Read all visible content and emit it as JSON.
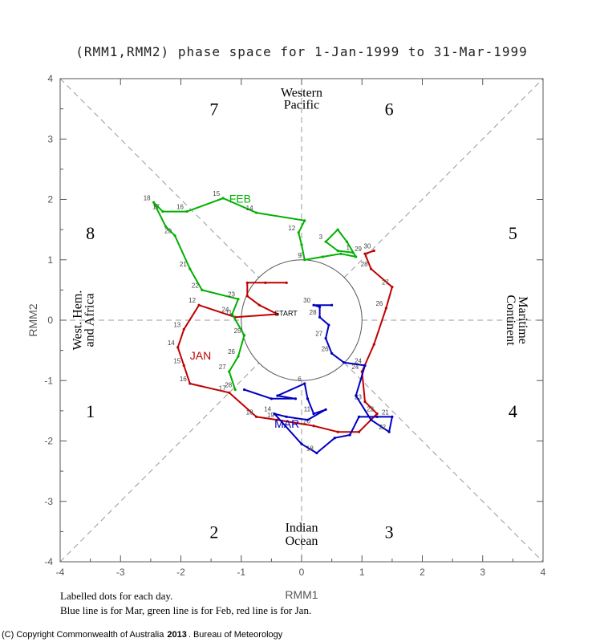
{
  "chart_data": {
    "type": "line",
    "title": "(RMM1,RMM2) phase space for  1-Jan-1999 to 31-Mar-1999",
    "xlabel": "RMM1",
    "ylabel": "RMM2",
    "xlim": [
      -4,
      4
    ],
    "ylim": [
      -4,
      4
    ],
    "x_ticks": [
      "-4",
      "-3",
      "-2",
      "-1",
      "0",
      "1",
      "2",
      "3",
      "4"
    ],
    "y_ticks": [
      "-4",
      "-3",
      "-2",
      "-1",
      "0",
      "1",
      "2",
      "3",
      "4"
    ],
    "phase_numbers": [
      "1",
      "2",
      "3",
      "4",
      "5",
      "6",
      "7",
      "8"
    ],
    "region_labels": {
      "top": [
        "Western",
        "Pacific"
      ],
      "bottom": [
        "Indian",
        "Ocean"
      ],
      "left": [
        "West. Hem.",
        "and Africa"
      ],
      "right": [
        "Maritime",
        "Continent"
      ]
    },
    "start_label": "START",
    "series": [
      {
        "name": "Jan",
        "month_label": "JAN",
        "color": "#c00000",
        "points": [
          [
            -0.25,
            0.62,
            ""
          ],
          [
            -0.6,
            0.62,
            ""
          ],
          [
            -0.9,
            0.62,
            ""
          ],
          [
            -0.9,
            0.4,
            ""
          ],
          [
            -0.7,
            0.25,
            ""
          ],
          [
            -0.4,
            0.1,
            ""
          ],
          [
            -1.1,
            0.05,
            "11"
          ],
          [
            -1.7,
            0.25,
            "12"
          ],
          [
            -1.95,
            -0.15,
            "13"
          ],
          [
            -2.05,
            -0.45,
            "14"
          ],
          [
            -1.95,
            -0.75,
            "15"
          ],
          [
            -1.85,
            -1.05,
            "16"
          ],
          [
            -1.2,
            -1.2,
            "17"
          ],
          [
            -0.75,
            -1.6,
            "18"
          ],
          [
            -0.4,
            -1.65,
            "19"
          ],
          [
            0.2,
            -1.75,
            "20"
          ],
          [
            0.6,
            -1.85,
            ""
          ],
          [
            0.95,
            -1.85,
            ""
          ],
          [
            1.25,
            -1.55,
            "22"
          ],
          [
            1.05,
            -1.35,
            "23"
          ],
          [
            1.0,
            -0.85,
            "24"
          ],
          [
            1.2,
            -0.4,
            ""
          ],
          [
            1.4,
            0.2,
            "26"
          ],
          [
            1.5,
            0.55,
            "27"
          ],
          [
            1.15,
            0.85,
            "28"
          ],
          [
            1.05,
            1.1,
            "29"
          ],
          [
            1.2,
            1.15,
            "30"
          ]
        ]
      },
      {
        "name": "Feb",
        "month_label": "FEB",
        "color": "#00b000",
        "points": [
          [
            0.85,
            1.12,
            "1"
          ],
          [
            0.6,
            1.15,
            ""
          ],
          [
            0.4,
            1.3,
            "3"
          ],
          [
            0.6,
            1.5,
            ""
          ],
          [
            0.75,
            1.3,
            ""
          ],
          [
            0.9,
            1.05,
            ""
          ],
          [
            0.65,
            1.1,
            ""
          ],
          [
            0.35,
            1.05,
            ""
          ],
          [
            0.05,
            1.0,
            "9"
          ],
          [
            0.0,
            1.25,
            ""
          ],
          [
            -0.05,
            1.45,
            "12"
          ],
          [
            0.05,
            1.65,
            ""
          ],
          [
            -0.75,
            1.78,
            "14"
          ],
          [
            -1.3,
            2.02,
            "15"
          ],
          [
            -1.9,
            1.8,
            "16"
          ],
          [
            -2.3,
            1.8,
            "17"
          ],
          [
            -2.45,
            1.95,
            "18"
          ],
          [
            -2.25,
            1.55,
            ""
          ],
          [
            -2.1,
            1.4,
            "20"
          ],
          [
            -1.85,
            0.85,
            "21"
          ],
          [
            -1.65,
            0.5,
            "22"
          ],
          [
            -1.05,
            0.35,
            "23"
          ],
          [
            -1.15,
            0.1,
            "24"
          ],
          [
            -0.95,
            -0.25,
            "25"
          ],
          [
            -1.05,
            -0.6,
            "26"
          ],
          [
            -1.2,
            -0.85,
            "27"
          ],
          [
            -1.1,
            -1.15,
            "28"
          ]
        ]
      },
      {
        "name": "Mar",
        "month_label": "MAR",
        "color": "#0000c0",
        "points": [
          [
            -0.95,
            -1.15,
            ""
          ],
          [
            -0.5,
            -1.3,
            ""
          ],
          [
            -0.1,
            -1.3,
            ""
          ],
          [
            -0.4,
            -1.25,
            ""
          ],
          [
            0.05,
            -1.05,
            "6"
          ],
          [
            0.1,
            -1.3,
            ""
          ],
          [
            0.2,
            -1.55,
            "11"
          ],
          [
            0.4,
            -1.48,
            ""
          ],
          [
            0.1,
            -1.65,
            ""
          ],
          [
            -0.25,
            -1.6,
            ""
          ],
          [
            -0.45,
            -1.55,
            "14"
          ],
          [
            0.0,
            -2.05,
            ""
          ],
          [
            0.25,
            -2.2,
            "18"
          ],
          [
            0.55,
            -1.95,
            ""
          ],
          [
            0.8,
            -1.9,
            ""
          ],
          [
            0.95,
            -1.6,
            ""
          ],
          [
            1.25,
            -1.6,
            ""
          ],
          [
            1.5,
            -1.6,
            "21"
          ],
          [
            1.45,
            -1.85,
            "22"
          ],
          [
            1.15,
            -1.65,
            ""
          ],
          [
            0.9,
            -1.25,
            ""
          ],
          [
            1.05,
            -0.75,
            "24"
          ],
          [
            0.7,
            -0.7,
            ""
          ],
          [
            0.5,
            -0.55,
            "26"
          ],
          [
            0.4,
            -0.3,
            "27"
          ],
          [
            0.45,
            -0.08,
            ""
          ],
          [
            0.3,
            0.05,
            "28"
          ],
          [
            0.3,
            0.22,
            ""
          ],
          [
            0.2,
            0.25,
            "30"
          ],
          [
            0.5,
            0.25,
            ""
          ]
        ]
      }
    ],
    "grid": false,
    "legend": "none"
  },
  "footnote": {
    "line1": "Labelled dots for each day.",
    "line2": "Blue line is for Mar, green line is for Feb, red line is for Jan."
  },
  "copyright": {
    "prefix": "(C) Copyright Commonwealth of Australia",
    "year": "2013",
    "suffix": ". Bureau of Meteorology"
  }
}
